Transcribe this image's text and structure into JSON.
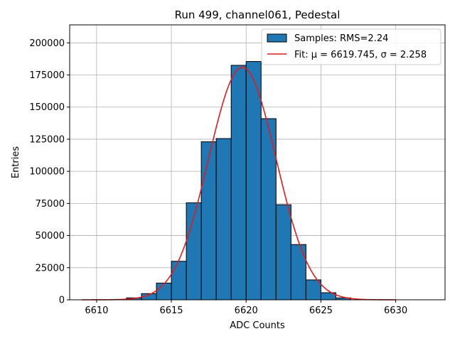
{
  "chart_data": {
    "type": "bar",
    "title": "Run 499, channel061, Pedestal",
    "xlabel": "ADC Counts",
    "ylabel": "Entries",
    "xlim": [
      6608.2,
      6633.3
    ],
    "ylim": [
      0,
      214000
    ],
    "xticks": [
      6610,
      6615,
      6620,
      6625,
      6630
    ],
    "yticks": [
      0,
      25000,
      50000,
      75000,
      100000,
      125000,
      150000,
      175000,
      200000
    ],
    "grid": true,
    "legend_position": "top-right",
    "histogram": {
      "name": "Samples: RMS=2.24",
      "color": "#1f77b4",
      "bin_edges": [
        6611,
        6612,
        6613,
        6614,
        6615,
        6616,
        6617,
        6618,
        6619,
        6620,
        6621,
        6622,
        6623,
        6624,
        6625,
        6626,
        6627
      ],
      "counts": [
        200,
        1500,
        4800,
        13000,
        30000,
        75500,
        123000,
        125500,
        182500,
        185500,
        141000,
        74000,
        43000,
        15500,
        5500,
        1500
      ]
    },
    "fit": {
      "name": "Fit: μ = 6619.745, σ = 2.258",
      "color": "#e41a1c",
      "mu": 6619.745,
      "sigma": 2.258,
      "amplitude": 181000,
      "x_range": [
        6609,
        6630
      ]
    }
  }
}
